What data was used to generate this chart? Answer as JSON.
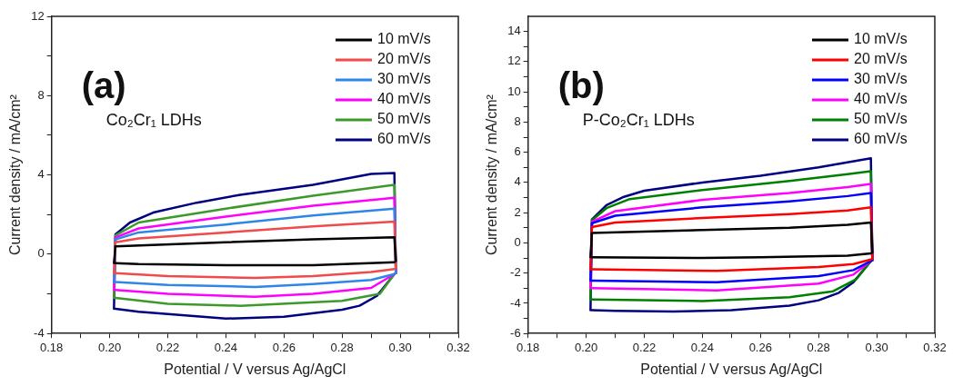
{
  "chart_data": [
    {
      "type": "line",
      "xlabel": "Potential / V versus Ag/AgCl",
      "ylabel": "Current density / mA/cm²",
      "annotations": [
        "(a)",
        "Co₂Cr₁ LDHs"
      ],
      "legend": "top right",
      "marker": "none",
      "line_style": "solid",
      "xlim": [
        0.18,
        0.32
      ],
      "xticks": [
        0.18,
        {
          "value": 0.19,
          "label": null
        },
        "0.20",
        {
          "value": 0.21,
          "label": null
        },
        0.22,
        {
          "value": 0.23,
          "label": null
        },
        0.24,
        {
          "value": 0.25,
          "label": null
        },
        0.26,
        {
          "value": 0.27,
          "label": null
        },
        0.28,
        {
          "value": 0.29,
          "label": null
        },
        {
          "value": 0.3,
          "label": "0.30"
        },
        {
          "value": 0.31,
          "label": null
        },
        0.32
      ],
      "ylim": [
        -4,
        12
      ],
      "yticks": [
        -4,
        {
          "value": -2,
          "label": null
        },
        0,
        {
          "value": 2,
          "label": null
        },
        4,
        {
          "value": 6,
          "label": null
        },
        8,
        {
          "value": 10,
          "label": null
        },
        12
      ],
      "series": [
        {
          "name": "10 mV/s",
          "color": "#000000",
          "x": [
            0.2015,
            0.202,
            0.24,
            0.27,
            0.298,
            0.2985
          ],
          "values": [
            -0.45,
            0.4,
            0.6,
            0.75,
            0.85,
            -0.35
          ]
        },
        {
          "color": "#000000",
          "x": [
            0.202,
            0.21,
            0.24,
            0.27,
            0.298
          ],
          "values": [
            -0.45,
            -0.5,
            -0.55,
            -0.55,
            -0.4
          ]
        },
        {
          "name": "20 mV/s",
          "color": "#f04a4a",
          "x": [
            0.2015,
            0.202,
            0.21,
            0.24,
            0.27,
            0.298,
            0.2985
          ],
          "values": [
            -0.95,
            0.6,
            0.8,
            1.1,
            1.4,
            1.65,
            -0.7
          ]
        },
        {
          "color": "#f04a4a",
          "x": [
            0.202,
            0.22,
            0.25,
            0.27,
            0.29,
            0.298
          ],
          "values": [
            -0.95,
            -1.1,
            -1.2,
            -1.1,
            -0.9,
            -0.75
          ]
        },
        {
          "name": "30 mV/s",
          "color": "#2e86e8",
          "x": [
            0.2015,
            0.202,
            0.21,
            0.24,
            0.27,
            0.298,
            0.2985
          ],
          "values": [
            -1.4,
            0.75,
            1.1,
            1.5,
            1.95,
            2.3,
            -0.95
          ]
        },
        {
          "color": "#2e86e8",
          "x": [
            0.202,
            0.22,
            0.25,
            0.27,
            0.29,
            0.298
          ],
          "values": [
            -1.4,
            -1.55,
            -1.65,
            -1.5,
            -1.3,
            -1.0
          ]
        },
        {
          "name": "40 mV/s",
          "color": "#ff00ff",
          "x": [
            0.2015,
            0.202,
            0.21,
            0.24,
            0.27,
            0.298,
            0.2985
          ],
          "values": [
            -1.8,
            0.85,
            1.3,
            1.9,
            2.45,
            2.85,
            -0.95
          ]
        },
        {
          "color": "#ff00ff",
          "x": [
            0.202,
            0.22,
            0.25,
            0.27,
            0.29,
            0.298
          ],
          "values": [
            -1.8,
            -2.0,
            -2.15,
            -2.0,
            -1.7,
            -1.0
          ]
        },
        {
          "name": "50 mV/s",
          "color": "#3c9a2a",
          "x": [
            0.2015,
            0.202,
            0.21,
            0.24,
            0.27,
            0.298,
            0.2985
          ],
          "values": [
            -2.2,
            0.95,
            1.6,
            2.3,
            2.95,
            3.5,
            -0.95
          ]
        },
        {
          "color": "#3c9a2a",
          "x": [
            0.202,
            0.22,
            0.245,
            0.28,
            0.293,
            0.298
          ],
          "values": [
            -2.2,
            -2.5,
            -2.6,
            -2.35,
            -2.0,
            -1.0
          ]
        },
        {
          "name": "60 mV/s",
          "color": "#000080",
          "x": [
            0.2015,
            0.202,
            0.207,
            0.215,
            0.23,
            0.245,
            0.27,
            0.29,
            0.298,
            0.2985
          ],
          "values": [
            -2.75,
            1.0,
            1.6,
            2.1,
            2.6,
            3.0,
            3.5,
            4.05,
            4.1,
            -0.95
          ]
        },
        {
          "color": "#000080",
          "x": [
            0.202,
            0.21,
            0.24,
            0.26,
            0.28,
            0.286,
            0.292,
            0.298
          ],
          "values": [
            -2.75,
            -2.9,
            -3.25,
            -3.15,
            -2.8,
            -2.6,
            -2.1,
            -1.0
          ]
        }
      ]
    },
    {
      "type": "line",
      "xlabel": "Potential / V versus Ag/AgCl",
      "ylabel": "Current density / mA/cm²",
      "annotations": [
        "(b)",
        "P-Co₂Cr₁ LDHs"
      ],
      "legend": "top right",
      "marker": "none",
      "line_style": "solid",
      "xlim": [
        0.18,
        0.32
      ],
      "xticks": [
        0.18,
        {
          "value": 0.19,
          "label": null
        },
        "0.20",
        {
          "value": 0.21,
          "label": null
        },
        0.22,
        {
          "value": 0.23,
          "label": null
        },
        0.24,
        {
          "value": 0.25,
          "label": null
        },
        0.26,
        {
          "value": 0.27,
          "label": null
        },
        0.28,
        {
          "value": 0.29,
          "label": null
        },
        {
          "value": 0.3,
          "label": "0.30"
        },
        {
          "value": 0.31,
          "label": null
        },
        0.32
      ],
      "ylim": [
        -6,
        15
      ],
      "yticks": [
        -6,
        {
          "value": -5,
          "label": null
        },
        -4,
        {
          "value": -3,
          "label": null
        },
        -2,
        {
          "value": -1,
          "label": null
        },
        0,
        {
          "value": 1,
          "label": null
        },
        2,
        {
          "value": 3,
          "label": null
        },
        4,
        {
          "value": 5,
          "label": null
        },
        6,
        {
          "value": 7,
          "label": null
        },
        8,
        {
          "value": 9,
          "label": null
        },
        10,
        {
          "value": 11,
          "label": null
        },
        12,
        {
          "value": 13,
          "label": null
        },
        14
      ],
      "series": [
        {
          "name": "10 mV/s",
          "color": "#000000",
          "x": [
            0.2015,
            0.202,
            0.24,
            0.27,
            0.29,
            0.298,
            0.2985
          ],
          "values": [
            -0.95,
            0.65,
            0.85,
            1.0,
            1.2,
            1.35,
            -0.65
          ]
        },
        {
          "color": "#000000",
          "x": [
            0.202,
            0.24,
            0.26,
            0.29,
            0.298
          ],
          "values": [
            -0.95,
            -1.0,
            -0.95,
            -0.85,
            -0.7
          ]
        },
        {
          "name": "20 mV/s",
          "color": "#ff0000",
          "x": [
            0.2015,
            0.202,
            0.21,
            0.24,
            0.27,
            0.29,
            0.298,
            0.2985
          ],
          "values": [
            -1.75,
            1.05,
            1.35,
            1.65,
            1.9,
            2.15,
            2.35,
            -1.05
          ]
        },
        {
          "color": "#ff0000",
          "x": [
            0.202,
            0.22,
            0.245,
            0.28,
            0.292,
            0.298
          ],
          "values": [
            -1.75,
            -1.8,
            -1.85,
            -1.6,
            -1.4,
            -1.1
          ]
        },
        {
          "name": "30 mV/s",
          "color": "#0000ff",
          "x": [
            0.2015,
            0.202,
            0.21,
            0.24,
            0.27,
            0.29,
            0.298,
            0.2985
          ],
          "values": [
            -2.5,
            1.3,
            1.8,
            2.35,
            2.75,
            3.1,
            3.3,
            -1.15
          ]
        },
        {
          "color": "#0000ff",
          "x": [
            0.202,
            0.22,
            0.245,
            0.28,
            0.292,
            0.298
          ],
          "values": [
            -2.5,
            -2.55,
            -2.6,
            -2.2,
            -1.8,
            -1.2
          ]
        },
        {
          "name": "40 mV/s",
          "color": "#ff00ff",
          "x": [
            0.2015,
            0.202,
            0.21,
            0.24,
            0.27,
            0.29,
            0.298,
            0.2985
          ],
          "values": [
            -3.0,
            1.4,
            2.1,
            2.85,
            3.3,
            3.7,
            3.9,
            -1.15
          ]
        },
        {
          "color": "#ff00ff",
          "x": [
            0.202,
            0.22,
            0.245,
            0.28,
            0.292,
            0.298
          ],
          "values": [
            -3.0,
            -3.05,
            -3.15,
            -2.7,
            -2.1,
            -1.2
          ]
        },
        {
          "name": "50 mV/s",
          "color": "#008000",
          "x": [
            0.2015,
            0.202,
            0.207,
            0.215,
            0.24,
            0.27,
            0.29,
            0.298,
            0.2985
          ],
          "values": [
            -3.75,
            1.5,
            2.3,
            2.9,
            3.5,
            4.1,
            4.55,
            4.75,
            -1.15
          ]
        },
        {
          "color": "#008000",
          "x": [
            0.202,
            0.24,
            0.27,
            0.285,
            0.293,
            0.298
          ],
          "values": [
            -3.75,
            -3.85,
            -3.6,
            -3.2,
            -2.4,
            -1.2
          ]
        },
        {
          "name": "60 mV/s",
          "color": "#000080",
          "x": [
            0.2015,
            0.202,
            0.207,
            0.213,
            0.22,
            0.24,
            0.26,
            0.28,
            0.298,
            0.2985
          ],
          "values": [
            -4.45,
            1.55,
            2.5,
            3.05,
            3.45,
            4.0,
            4.45,
            5.0,
            5.6,
            -1.15
          ]
        },
        {
          "color": "#000080",
          "x": [
            0.202,
            0.21,
            0.23,
            0.25,
            0.27,
            0.28,
            0.287,
            0.292,
            0.298
          ],
          "values": [
            -4.45,
            -4.5,
            -4.55,
            -4.45,
            -4.15,
            -3.8,
            -3.3,
            -2.6,
            -1.2
          ]
        }
      ]
    }
  ]
}
